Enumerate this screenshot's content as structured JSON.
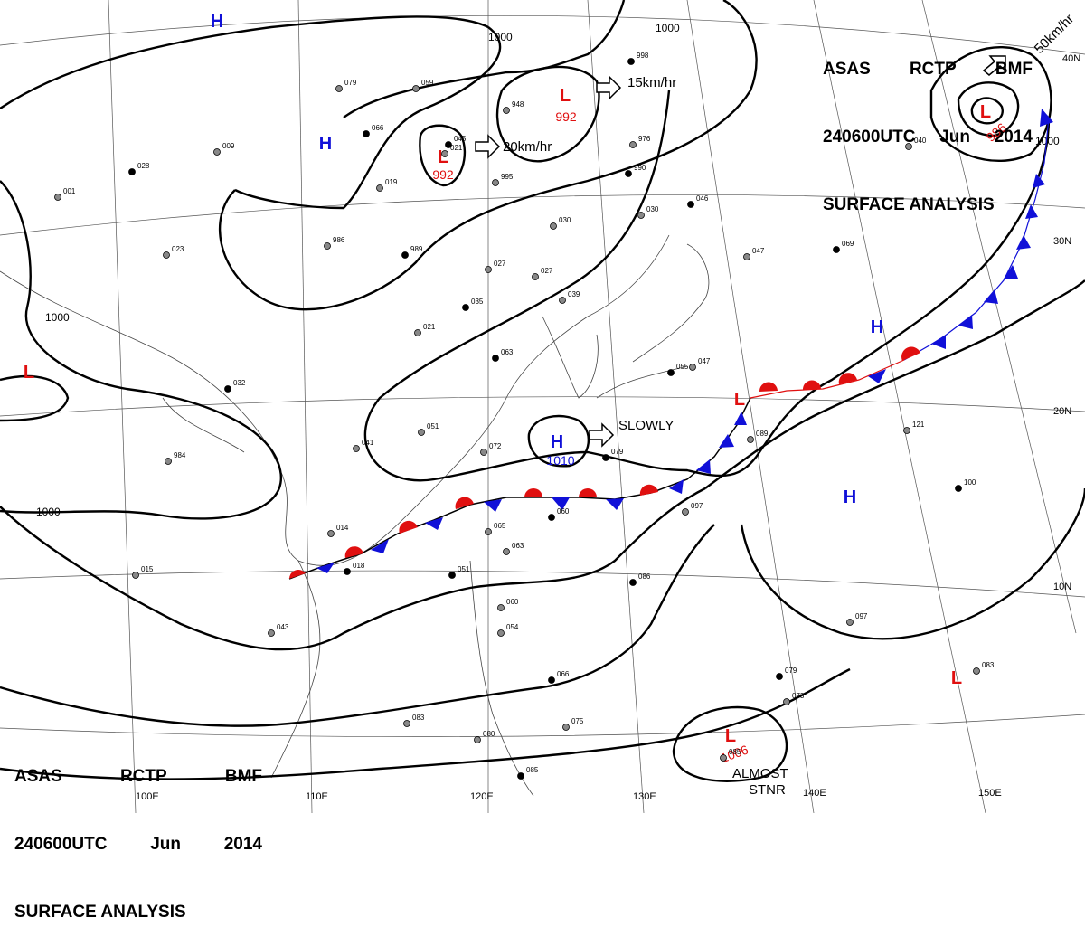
{
  "header": {
    "line1": [
      "ASAS",
      "RCTP",
      "BMF"
    ],
    "line2": [
      "240600UTC",
      "Jun",
      "2014"
    ],
    "line3": "SURFACE ANALYSIS"
  },
  "isobar_labels": [
    "1000",
    "1000",
    "1000",
    "1000",
    "1000"
  ],
  "pressure_centers": [
    {
      "type": "H",
      "value": ""
    },
    {
      "type": "H",
      "value": ""
    },
    {
      "type": "L",
      "value": ""
    },
    {
      "type": "L",
      "value": "992"
    },
    {
      "type": "L",
      "value": "992"
    },
    {
      "type": "L",
      "value": "986"
    },
    {
      "type": "H",
      "value": "1010"
    },
    {
      "type": "H",
      "value": ""
    },
    {
      "type": "H",
      "value": ""
    },
    {
      "type": "L",
      "value": ""
    },
    {
      "type": "L",
      "value": ""
    },
    {
      "type": "L",
      "value": "1006"
    }
  ],
  "motions": [
    "15km/hr",
    "20km/hr",
    "50km/hr",
    "SLOWLY"
  ],
  "stationary_note": [
    "ALMOST",
    "STNR"
  ],
  "longitude_labels": [
    "100E",
    "110E",
    "120E",
    "130E",
    "140E",
    "150E"
  ],
  "latitude_labels": [
    "40N",
    "30N",
    "20N",
    "10N"
  ],
  "station_pressures": [
    "045",
    "021",
    "948",
    "998",
    "995",
    "976",
    "990",
    "059",
    "079",
    "066",
    "019",
    "986",
    "989",
    "027",
    "027",
    "035",
    "039",
    "021",
    "063",
    "051",
    "072",
    "079",
    "041",
    "014",
    "018",
    "043",
    "015",
    "032",
    "984",
    "009",
    "028",
    "001",
    "023",
    "060",
    "065",
    "063",
    "051",
    "097",
    "089",
    "086",
    "060",
    "054",
    "066",
    "083",
    "080",
    "085",
    "075",
    "085",
    "079",
    "097",
    "083",
    "100",
    "121",
    "047",
    "046",
    "030",
    "040",
    "069",
    "047",
    "073",
    "055",
    "030"
  ],
  "colors": {
    "high": "#1010d8",
    "low": "#e01010",
    "warm_front": "#e01010",
    "cold_front": "#1010d8",
    "isobar": "#000000"
  }
}
